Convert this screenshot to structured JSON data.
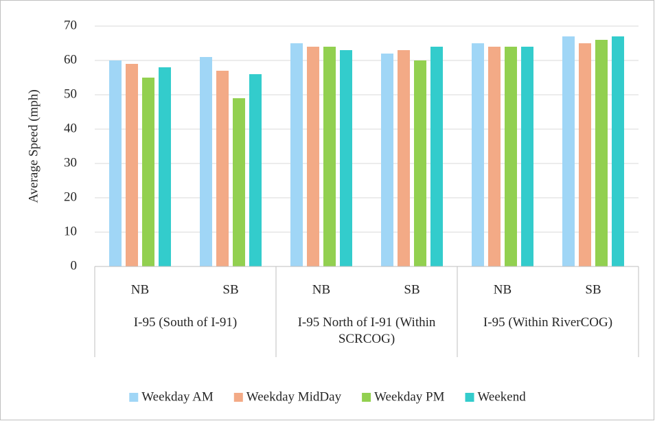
{
  "chart_data": {
    "type": "bar",
    "y_label": "Average Speed (mph)",
    "categories": [
      "NB",
      "SB",
      "NB",
      "SB",
      "NB",
      "SB"
    ],
    "groups": [
      "I-95 (South of I-91)",
      "I-95 North of I-91 (Within SCRCOG)",
      "I-95 (Within RiverCOG)"
    ],
    "series": [
      {
        "name": "Weekday AM",
        "color": "#a0d6f6",
        "values": [
          60,
          61,
          65,
          62,
          65,
          67
        ]
      },
      {
        "name": "Weekday MidDay",
        "color": "#f3aa86",
        "values": [
          59,
          57,
          64,
          63,
          64,
          65
        ]
      },
      {
        "name": "Weekday PM",
        "color": "#92d050",
        "values": [
          55,
          49,
          64,
          60,
          64,
          66
        ]
      },
      {
        "name": "Weekend",
        "color": "#33cccc",
        "values": [
          58,
          56,
          63,
          64,
          64,
          67
        ]
      }
    ],
    "ylim": [
      0,
      70
    ],
    "yticks": [
      0,
      10,
      20,
      30,
      40,
      50,
      60,
      70
    ],
    "grid": true,
    "legend": "bottom"
  }
}
